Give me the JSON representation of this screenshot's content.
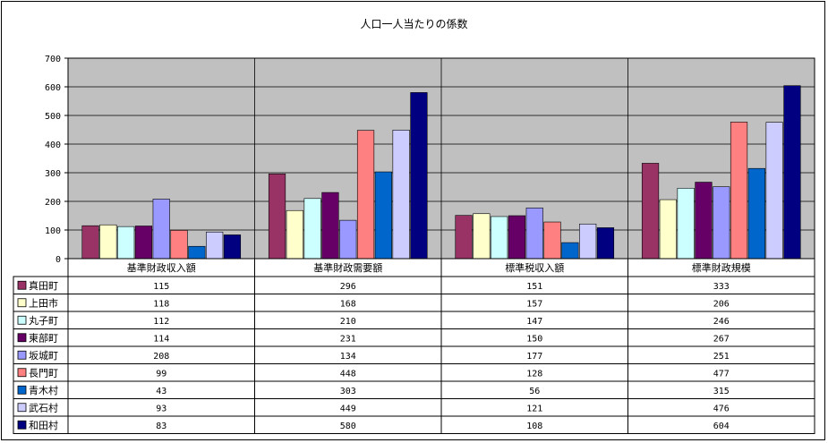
{
  "chart_data": {
    "type": "bar",
    "title": "人口一人当たりの係数",
    "categories": [
      "基準財政収入額",
      "基準財政需要額",
      "標準税収入額",
      "標準財政規模"
    ],
    "ylim": [
      0,
      700
    ],
    "yticks": [
      0,
      100,
      200,
      300,
      400,
      500,
      600,
      700
    ],
    "grid": true,
    "legend": "data-table-below",
    "series": [
      {
        "name": "真田町",
        "color": "#993366",
        "values": [
          115,
          296,
          151,
          333
        ]
      },
      {
        "name": "上田市",
        "color": "#ffffcc",
        "values": [
          118,
          168,
          157,
          206
        ]
      },
      {
        "name": "丸子町",
        "color": "#ccffff",
        "values": [
          112,
          210,
          147,
          246
        ]
      },
      {
        "name": "東部町",
        "color": "#660066",
        "values": [
          114,
          231,
          150,
          267
        ]
      },
      {
        "name": "坂城町",
        "color": "#9999ff",
        "values": [
          208,
          134,
          177,
          251
        ]
      },
      {
        "name": "長門町",
        "color": "#ff8080",
        "values": [
          99,
          448,
          128,
          477
        ]
      },
      {
        "name": "青木村",
        "color": "#0066cc",
        "values": [
          43,
          303,
          56,
          315
        ]
      },
      {
        "name": "武石村",
        "color": "#ccccff",
        "values": [
          93,
          449,
          121,
          476
        ]
      },
      {
        "name": "和田村",
        "color": "#000080",
        "values": [
          83,
          580,
          108,
          604
        ]
      }
    ]
  }
}
